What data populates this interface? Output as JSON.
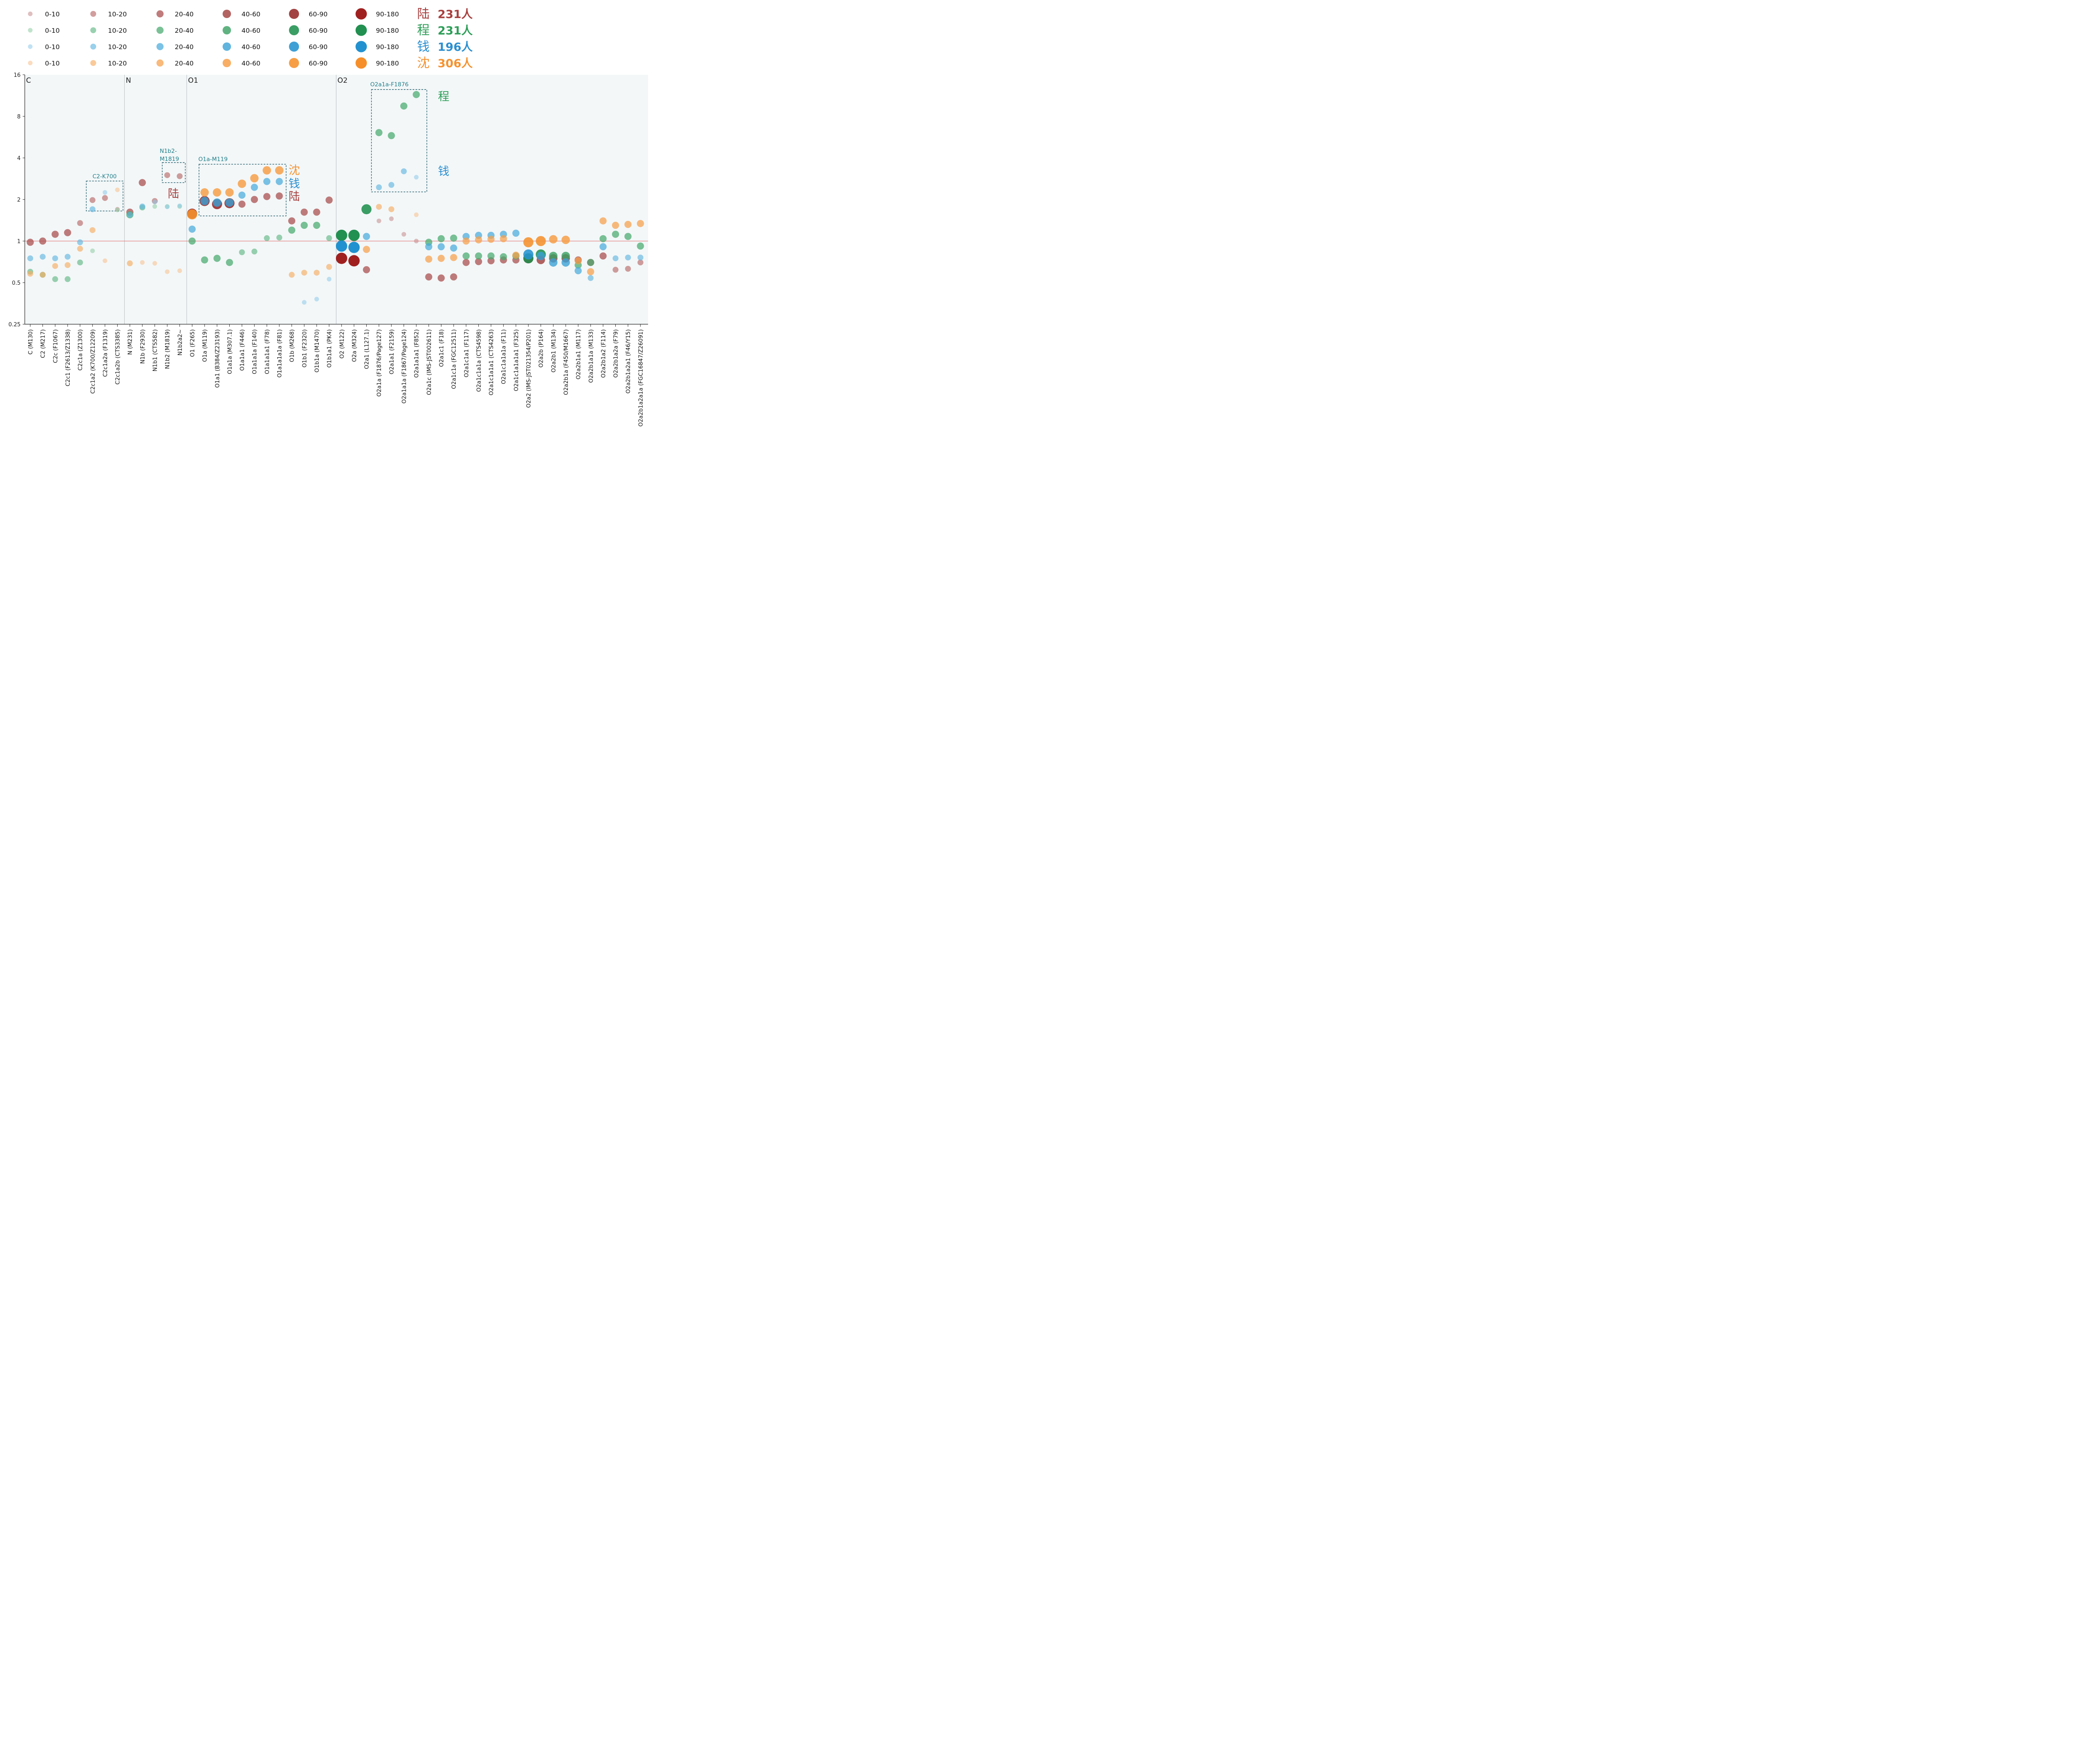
{
  "chart_data": {
    "type": "scatter",
    "title": "",
    "xlabel": "",
    "ylabel": "",
    "y_scale": "log2",
    "ylim": [
      0.25,
      16
    ],
    "y_ticks": [
      "0.25",
      "0.5",
      "1",
      "2",
      "4",
      "8",
      "16"
    ],
    "reference_line": 1,
    "legend_placement": "top",
    "legend": {
      "size_classes": [
        "0-10",
        "10-20",
        "20-40",
        "40-60",
        "60-90",
        "90-180"
      ],
      "groups": [
        {
          "name": "陆",
          "count": "231人"
        },
        {
          "name": "程",
          "count": "231人"
        },
        {
          "name": "钱",
          "count": "196人"
        },
        {
          "name": "沈",
          "count": "306人"
        }
      ]
    },
    "colors": {
      "lu": "#a8403f",
      "cheng": "#2e9e58",
      "qian": "#2b8fd0",
      "shen": "#f59331",
      "plot_bg": "#f3f7f8",
      "ref_line": "#e06060",
      "box": "#1f5a68",
      "box_label": "#1f7f8a"
    },
    "sections": [
      {
        "label": "C"
      },
      {
        "label": "N"
      },
      {
        "label": "O1"
      },
      {
        "label": "O2"
      }
    ],
    "categories": [
      "C (M130)",
      "C2 (M217)",
      "C2c (F1067)",
      "C2c1 (F2613/Z1338)",
      "C2c1a (Z1300)",
      "C2c1a2 (K700/Z12209)",
      "C2c1a2a (F1319)",
      "C2c1a2b (CTS3385)",
      "N (M231)",
      "N1b (F2930)",
      "N1b1 (CTS582)",
      "N1b2 (M1819)",
      "N1b2a2~",
      "O1 (F265)",
      "O1a (M119)",
      "O1a1 (B384/Z23193)",
      "O1a1a (M307.1)",
      "O1a1a1 (F446)",
      "O1a1a1a (F140)",
      "O1a1a1a1 (F78)",
      "O1a1a1a1a (F81)",
      "O1b (M268)",
      "O1b1 (F2320)",
      "O1b1a (M1470)",
      "O1b1a1 (PK4)",
      "O2 (M122)",
      "O2a (M324)",
      "O2a1 (L127.1)",
      "O2a1a (F1876/Page127)",
      "O2a1a1 (F2159)",
      "O2a1a1a (F1867/Page124)",
      "O2a1a1a1 (F852)",
      "O2a1c (IMS-JST002611)",
      "O2a1c1 (F18)",
      "O2a1c1a (FGC12511)",
      "O2a1c1a1 (F117)",
      "O2a1c1a1a (CTS4598)",
      "O2a1c1a1a1 (CTS4263)",
      "O2a1c1a1a1a (F11)",
      "O2a1c1a1a1a1 (F325)",
      "O2a2 (IMS-JST021354/P201)",
      "O2a2b (P164)",
      "O2a2b1 (M134)",
      "O2a2b1a (F450/M1667)",
      "O2a2b1a1 (M117)",
      "O2a2b1a1a (M133)",
      "O2a2b1a2 (F114)",
      "O2a2b1a2a (F79)",
      "O2a2b1a2a1 (F46/Y15)",
      "O2a2b1a2a1a (FGC16847/Z26091)"
    ],
    "annotation_boxes": [
      {
        "label": "C2-K700"
      },
      {
        "label": "N1b2-\nM1819"
      },
      {
        "label": "O1a-M119"
      },
      {
        "label": "O2a1a-F1876"
      }
    ],
    "annotation_texts": [
      {
        "text": "陆",
        "group": "lu"
      },
      {
        "text": "沈",
        "group": "shen"
      },
      {
        "text": "钱",
        "group": "qian"
      },
      {
        "text": "陆",
        "group": "lu"
      },
      {
        "text": "程",
        "group": "cheng"
      },
      {
        "text": "钱",
        "group": "qian"
      }
    ],
    "series": [
      {
        "name": "陆",
        "key": "lu",
        "values": [
          0.98,
          1.0,
          1.12,
          1.15,
          1.35,
          1.98,
          2.05,
          1.7,
          1.62,
          2.65,
          1.95,
          3.0,
          2.95,
          1.58,
          1.95,
          1.85,
          1.88,
          1.85,
          2.0,
          2.1,
          2.12,
          1.4,
          1.62,
          1.62,
          1.98,
          0.75,
          0.72,
          0.62,
          1.4,
          1.45,
          1.12,
          1.0,
          0.55,
          0.54,
          0.55,
          0.7,
          0.71,
          0.72,
          0.73,
          0.73,
          0.75,
          0.73,
          0.75,
          0.75,
          0.73,
          0.7,
          0.78,
          0.62,
          0.63,
          0.7
        ],
        "sizes": [
          2,
          2,
          2,
          2,
          1,
          1,
          1,
          0,
          2,
          2,
          1,
          1,
          1,
          4,
          4,
          4,
          4,
          2,
          2,
          2,
          2,
          2,
          2,
          2,
          2,
          5,
          5,
          2,
          0,
          0,
          0,
          0,
          2,
          2,
          2,
          2,
          2,
          2,
          2,
          2,
          4,
          3,
          3,
          3,
          2,
          2,
          2,
          1,
          1,
          1
        ]
      },
      {
        "name": "程",
        "key": "cheng",
        "values": [
          0.6,
          0.57,
          0.53,
          0.53,
          0.7,
          0.85,
          0,
          1.68,
          1.55,
          1.75,
          1.78,
          1.78,
          1.78,
          1.0,
          0.73,
          0.75,
          0.7,
          0.83,
          0.84,
          1.05,
          1.06,
          1.2,
          1.3,
          1.3,
          1.05,
          1.1,
          1.1,
          1.7,
          6.1,
          5.8,
          9.5,
          11.5,
          0.98,
          1.04,
          1.05,
          0.78,
          0.78,
          0.78,
          0.77,
          0.78,
          0.75,
          0.8,
          0.78,
          0.78,
          0.67,
          0.7,
          1.04,
          1.12,
          1.08,
          0.92
        ],
        "sizes": [
          1,
          1,
          1,
          1,
          1,
          0,
          0,
          0,
          2,
          1,
          0,
          0,
          0,
          2,
          2,
          2,
          2,
          1,
          1,
          1,
          1,
          2,
          2,
          2,
          1,
          5,
          5,
          4,
          2,
          2,
          2,
          2,
          2,
          2,
          2,
          2,
          2,
          2,
          2,
          2,
          4,
          4,
          3,
          3,
          2,
          2,
          2,
          2,
          2,
          2
        ]
      },
      {
        "name": "钱",
        "key": "qian",
        "values": [
          0.75,
          0.77,
          0.75,
          0.77,
          0.98,
          1.7,
          2.25,
          0,
          1.55,
          1.78,
          1.92,
          1.77,
          1.8,
          1.22,
          1.95,
          1.9,
          1.9,
          2.15,
          2.45,
          2.7,
          2.7,
          0,
          0.36,
          0.38,
          0.53,
          0.92,
          0.9,
          1.08,
          2.45,
          2.55,
          3.2,
          2.9,
          0.91,
          0.91,
          0.89,
          1.08,
          1.1,
          1.1,
          1.12,
          1.14,
          0.8,
          0.78,
          0.7,
          0.7,
          0.61,
          0.54,
          0.91,
          0.75,
          0.76,
          0.76
        ],
        "sizes": [
          1,
          1,
          1,
          1,
          1,
          1,
          0,
          0,
          1,
          1,
          0,
          0,
          0,
          2,
          3,
          3,
          3,
          2,
          2,
          2,
          2,
          0,
          0,
          0,
          0,
          5,
          5,
          2,
          1,
          1,
          1,
          0,
          2,
          2,
          2,
          2,
          2,
          2,
          2,
          2,
          4,
          3,
          3,
          3,
          2,
          1,
          2,
          1,
          1,
          1
        ]
      },
      {
        "name": "沈",
        "key": "shen",
        "values": [
          0.58,
          0.57,
          0.66,
          0.67,
          0.88,
          1.2,
          0.72,
          2.35,
          0.69,
          0.7,
          0.69,
          0.6,
          0.61,
          1.56,
          2.25,
          2.25,
          2.25,
          2.6,
          2.85,
          3.25,
          3.25,
          0.57,
          0.59,
          0.59,
          0.65,
          0,
          0,
          0.87,
          1.77,
          1.7,
          0,
          1.55,
          0.74,
          0.75,
          0.76,
          1.0,
          1.02,
          1.03,
          1.04,
          0.79,
          0.98,
          1.0,
          1.03,
          1.02,
          0.72,
          0.6,
          1.4,
          1.3,
          1.32,
          1.34
        ],
        "sizes": [
          1,
          1,
          1,
          1,
          1,
          1,
          0,
          0,
          1,
          0,
          0,
          0,
          0,
          4,
          3,
          3,
          3,
          3,
          3,
          3,
          3,
          1,
          1,
          1,
          1,
          0,
          0,
          2,
          1,
          1,
          0,
          0,
          2,
          2,
          2,
          2,
          2,
          2,
          2,
          2,
          4,
          4,
          3,
          3,
          2,
          2,
          2,
          2,
          2,
          2
        ]
      }
    ]
  }
}
